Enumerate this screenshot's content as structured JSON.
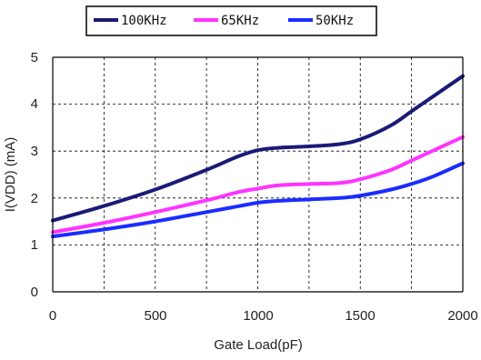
{
  "chart_data": {
    "type": "line",
    "title": "",
    "xlabel": "Gate Load(pF)",
    "ylabel": "I(VDD) (mA)",
    "xlim": [
      0,
      2000
    ],
    "ylim": [
      0,
      5
    ],
    "x_ticks": [
      "0",
      "500",
      "1000",
      "1500",
      "2000"
    ],
    "y_ticks": [
      "0",
      "1",
      "2",
      "3",
      "4",
      "5"
    ],
    "grid": true,
    "legend_position": "top",
    "series": [
      {
        "name": "100KHz",
        "color": "#1a1a78",
        "x": [
          0,
          250,
          500,
          750,
          900,
          1000,
          1100,
          1250,
          1400,
          1500,
          1650,
          1750,
          1850,
          2000
        ],
        "values": [
          1.52,
          1.83,
          2.18,
          2.6,
          2.88,
          3.02,
          3.07,
          3.1,
          3.15,
          3.25,
          3.55,
          3.85,
          4.15,
          4.6
        ]
      },
      {
        "name": "65KHz",
        "color": "#ff33ff",
        "x": [
          0,
          250,
          500,
          750,
          900,
          1000,
          1100,
          1250,
          1400,
          1500,
          1650,
          1750,
          1850,
          2000
        ],
        "values": [
          1.27,
          1.47,
          1.7,
          1.95,
          2.12,
          2.2,
          2.27,
          2.3,
          2.32,
          2.4,
          2.6,
          2.8,
          3.0,
          3.3
        ]
      },
      {
        "name": "50KHz",
        "color": "#1a2cff",
        "x": [
          0,
          250,
          500,
          750,
          900,
          1000,
          1100,
          1250,
          1400,
          1500,
          1650,
          1750,
          1850,
          2000
        ],
        "values": [
          1.18,
          1.33,
          1.5,
          1.7,
          1.82,
          1.9,
          1.94,
          1.97,
          2.0,
          2.05,
          2.18,
          2.3,
          2.45,
          2.74
        ]
      }
    ]
  }
}
